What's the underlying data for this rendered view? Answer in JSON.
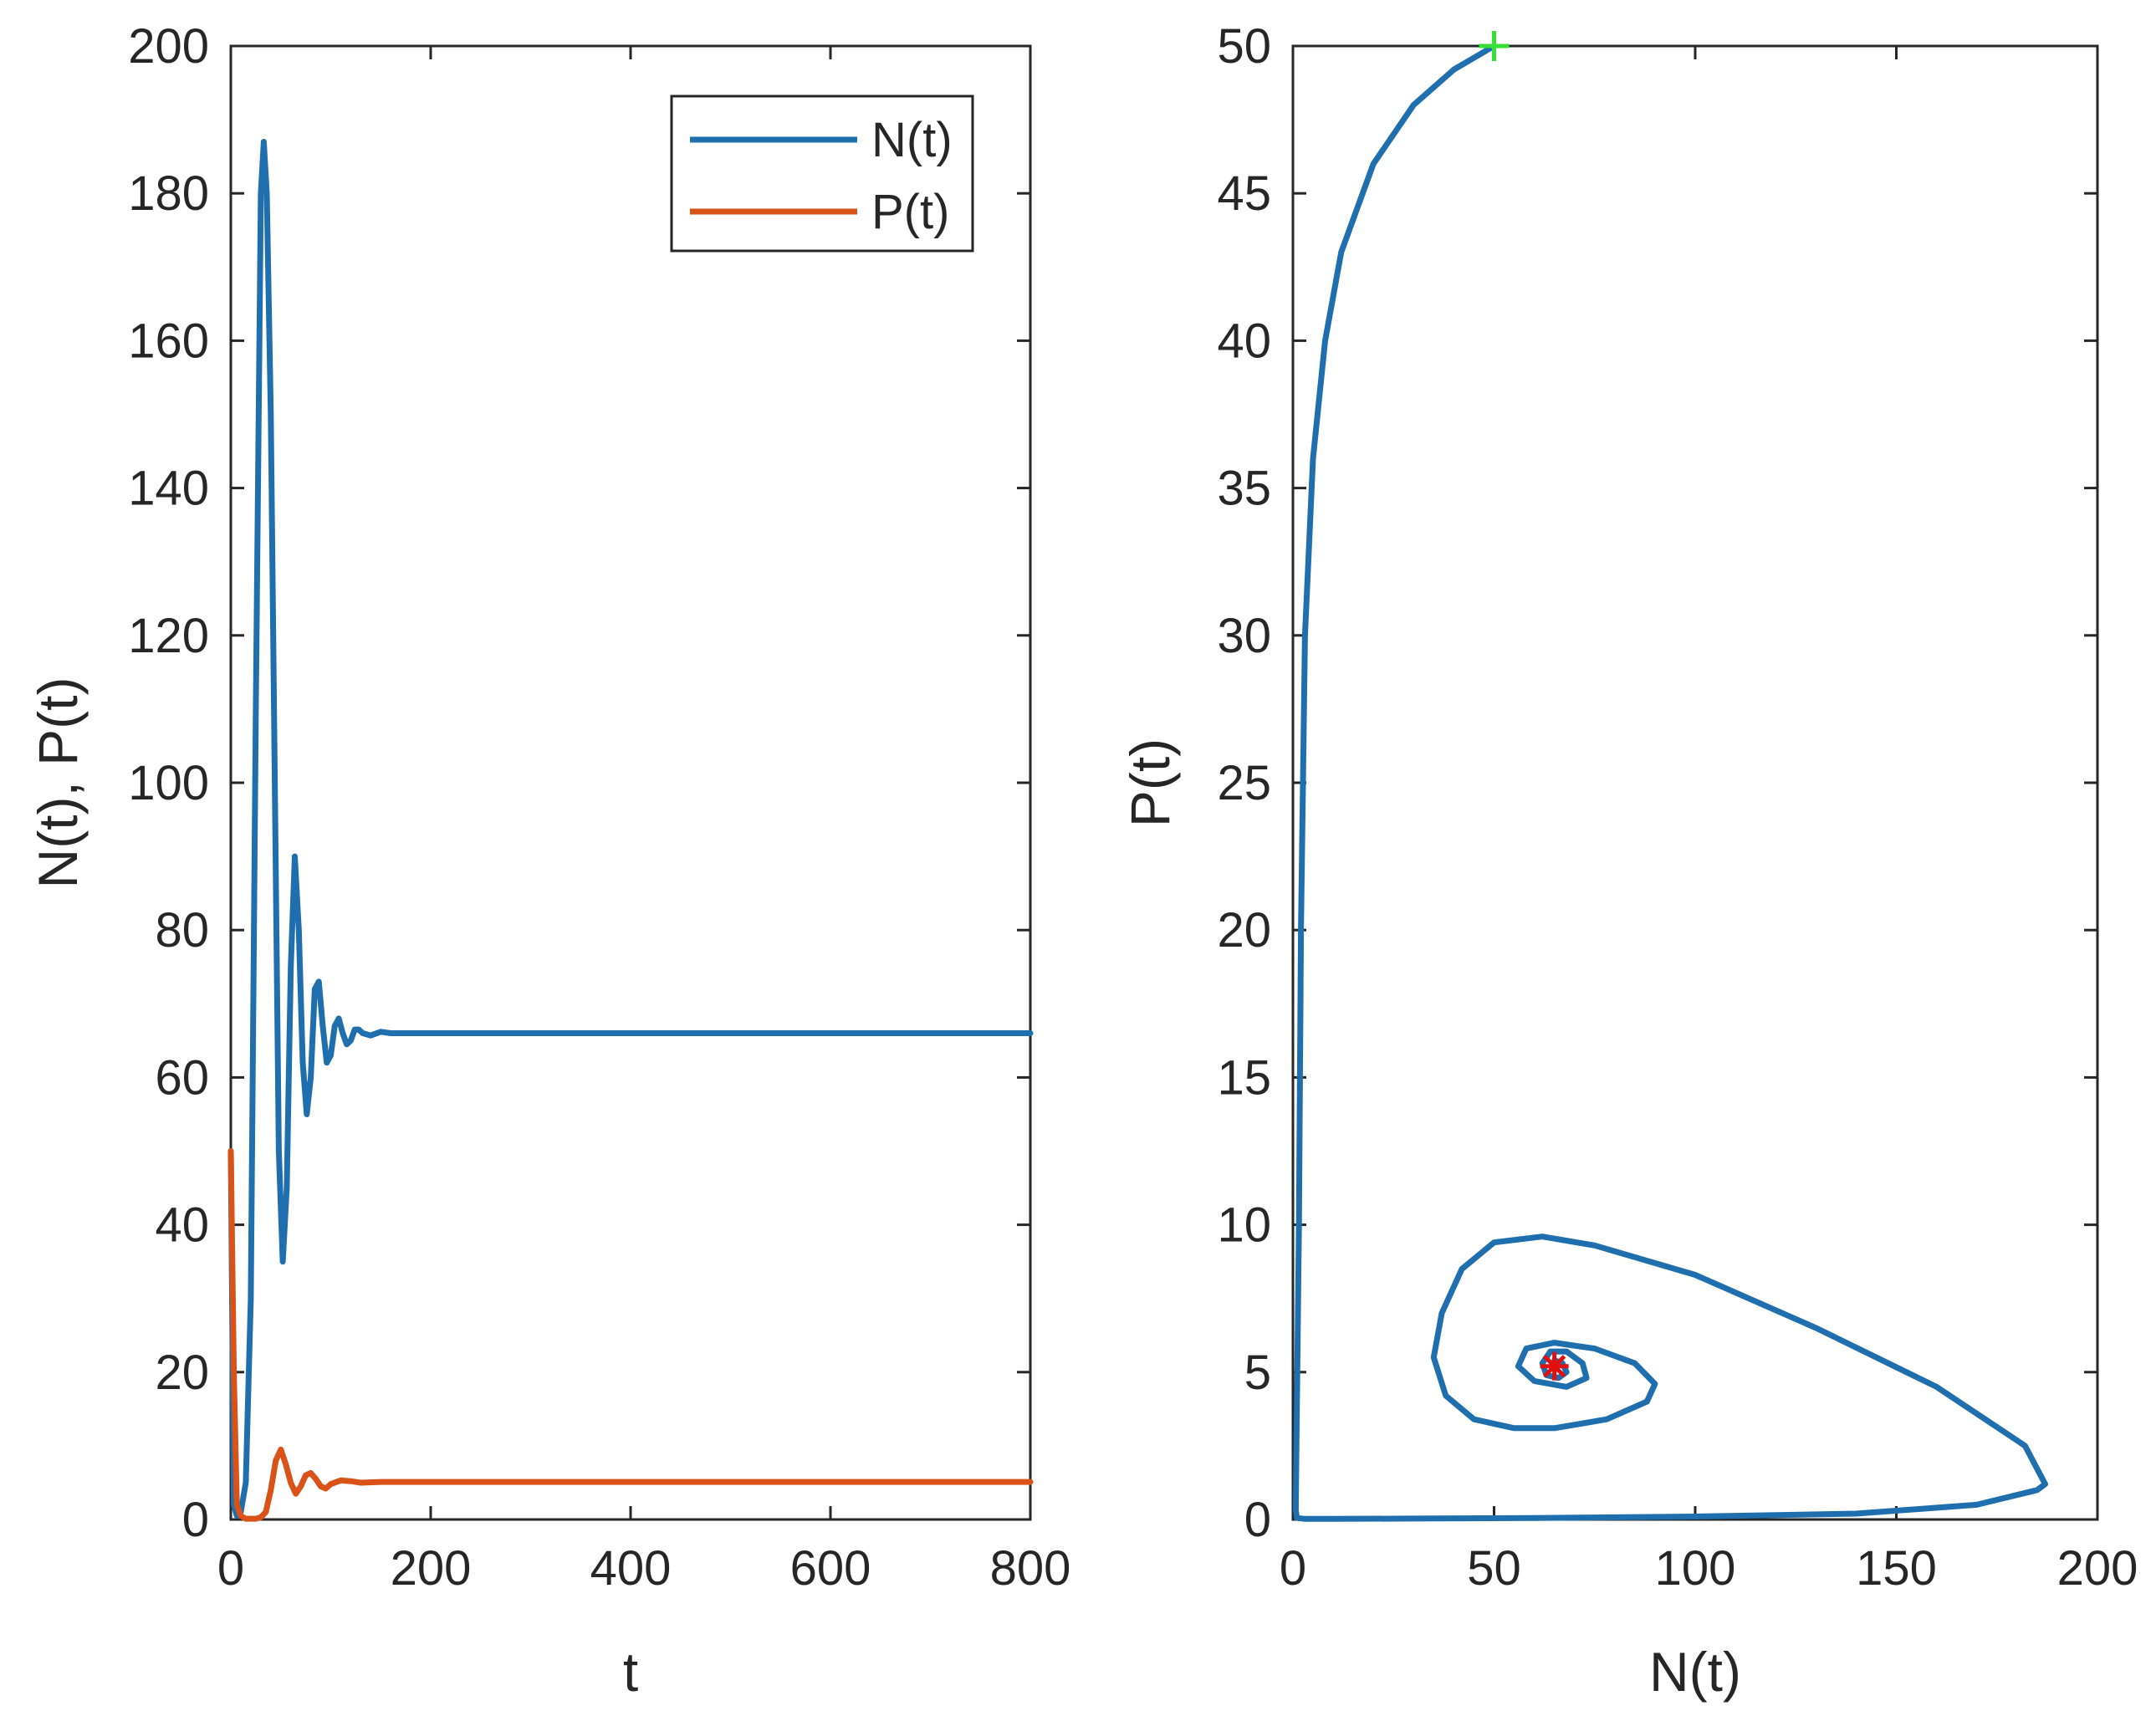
{
  "colors": {
    "n_series": "#1f6fae",
    "p_series": "#d95319",
    "start_marker": "#33e033",
    "equilibrium_marker": "#e01010",
    "axes": "#262626"
  },
  "chart_data": [
    {
      "type": "line",
      "xlabel": "t",
      "ylabel": "N(t), P(t)",
      "xlim": [
        0,
        800
      ],
      "ylim": [
        0,
        200
      ],
      "xticks": [
        0,
        200,
        400,
        600,
        800
      ],
      "yticks": [
        0,
        20,
        40,
        60,
        80,
        100,
        120,
        140,
        160,
        180,
        200
      ],
      "xtick_labels": [
        "0",
        "200",
        "400",
        "600",
        "800"
      ],
      "ytick_labels": [
        "0",
        "20",
        "40",
        "60",
        "80",
        "100",
        "120",
        "140",
        "160",
        "180",
        "200"
      ],
      "legend": {
        "position": "top-right",
        "entries": [
          "N(t)",
          "P(t)"
        ]
      },
      "series": [
        {
          "name": "N(t)",
          "x": [
            0,
            3,
            6,
            10,
            15,
            20,
            25,
            30,
            33,
            36,
            40,
            44,
            48,
            52,
            56,
            60,
            64,
            68,
            72,
            76,
            80,
            84,
            88,
            92,
            96,
            100,
            104,
            108,
            112,
            116,
            120,
            124,
            128,
            132,
            140,
            150,
            160,
            200,
            400,
            600,
            800
          ],
          "y": [
            50,
            2,
            0.5,
            1,
            5,
            30,
            110,
            180,
            187,
            180,
            150,
            100,
            50,
            35,
            45,
            75,
            90,
            80,
            62,
            55,
            60,
            72,
            73,
            67,
            62,
            63,
            67,
            68,
            66,
            64.5,
            65,
            66.5,
            66.5,
            66,
            65.7,
            66.2,
            66,
            66,
            66,
            66,
            66
          ]
        },
        {
          "name": "P(t)",
          "x": [
            0,
            3,
            6,
            10,
            15,
            20,
            25,
            30,
            35,
            40,
            45,
            50,
            55,
            60,
            65,
            70,
            75,
            80,
            85,
            90,
            95,
            100,
            110,
            120,
            130,
            150,
            200,
            400,
            600,
            800
          ],
          "y": [
            50,
            20,
            2,
            0.5,
            0.1,
            0.1,
            0.1,
            0.3,
            1,
            4,
            8,
            9.5,
            7.5,
            5,
            3.5,
            4.5,
            6,
            6.3,
            5.5,
            4.5,
            4.2,
            4.8,
            5.3,
            5.2,
            5,
            5.1,
            5.1,
            5.1,
            5.1,
            5.1
          ]
        }
      ]
    },
    {
      "type": "line",
      "xlabel": "N(t)",
      "ylabel": "P(t)",
      "xlim": [
        0,
        200
      ],
      "ylim": [
        0,
        50
      ],
      "xticks": [
        0,
        50,
        100,
        150,
        200
      ],
      "yticks": [
        0,
        5,
        10,
        15,
        20,
        25,
        30,
        35,
        40,
        45,
        50
      ],
      "xtick_labels": [
        "0",
        "50",
        "100",
        "150",
        "200"
      ],
      "ytick_labels": [
        "0",
        "5",
        "10",
        "15",
        "20",
        "25",
        "30",
        "35",
        "40",
        "45",
        "50"
      ],
      "series": [
        {
          "x": [
            50,
            40,
            30,
            20,
            12,
            8,
            5,
            3,
            2,
            1.5,
            1,
            0.8,
            0.7,
            1,
            3,
            10,
            30,
            60,
            100,
            140,
            170,
            185,
            187,
            182,
            160,
            130,
            100,
            75,
            62,
            50,
            42,
            37,
            35,
            38,
            45,
            55,
            65,
            78,
            88,
            90,
            85,
            75,
            65,
            58,
            56,
            60,
            68,
            73,
            72,
            68,
            64,
            62,
            63,
            66,
            68,
            67,
            65,
            64.5,
            65
          ],
          "y": [
            50,
            49.2,
            48,
            46,
            43,
            40,
            36,
            30,
            20,
            10,
            4,
            1.5,
            0.3,
            0.05,
            0.02,
            0.02,
            0.03,
            0.05,
            0.1,
            0.2,
            0.5,
            1,
            1.2,
            2.5,
            4.5,
            6.5,
            8.3,
            9.3,
            9.6,
            9.4,
            8.5,
            7,
            5.5,
            4.2,
            3.4,
            3.1,
            3.1,
            3.4,
            4,
            4.6,
            5.3,
            5.8,
            6,
            5.8,
            5.2,
            4.7,
            4.5,
            4.8,
            5.3,
            5.7,
            5.7,
            5.3,
            4.9,
            4.8,
            5,
            5.3,
            5.4,
            5.2,
            5.15
          ]
        }
      ],
      "markers": [
        {
          "name": "start",
          "x": 50,
          "y": 50
        },
        {
          "name": "equilibrium",
          "x": 65,
          "y": 5.2
        }
      ]
    }
  ]
}
